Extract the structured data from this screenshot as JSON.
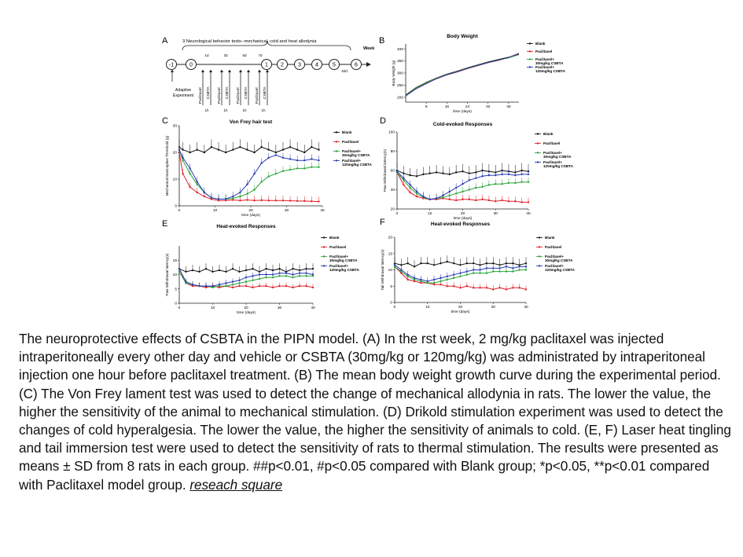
{
  "panel_a": {
    "letter": "A",
    "title": "3 Neurological behavior tests--mechanical, cold and heat allodynia",
    "week_label": "Week",
    "timeline_nodes": [
      "-1",
      "0",
      "1",
      "2",
      "3",
      "4",
      "5",
      "6"
    ],
    "day_marks": [
      "1d",
      "3d",
      "5d",
      "7d",
      "40d"
    ],
    "drug_labels": [
      "Paclitaxel",
      "CSBTA"
    ],
    "hour_label": "1h",
    "adaptive_label": "Adaptive",
    "experiment_label": "Experiment"
  },
  "legend_short": [
    "Blank",
    "Paclitaxel",
    "Paclitaxel+ 30mg/kg CSBTA",
    "Paclitaxel+ 120mg/kg CSBTA"
  ],
  "legend_lines": [
    [
      "Blank"
    ],
    [
      "Paclitaxel"
    ],
    [
      "Paclitaxel+",
      "30mg/kg CSBTA"
    ],
    [
      "Paclitaxel+",
      "120mg/kg CSBTA"
    ]
  ],
  "series_colors": [
    "#111111",
    "#e0202a",
    "#2aa33a",
    "#2b3bb5"
  ],
  "chart_data": [
    {
      "panel": "B",
      "type": "line",
      "title": "Body Weight",
      "xlabel": "time (days)",
      "ylabel": "Body Weight (g)",
      "xlim": [
        0,
        44
      ],
      "ylim": [
        180,
        420
      ],
      "xticks": [
        8,
        16,
        24,
        32,
        40
      ],
      "yticks": [
        200,
        250,
        300,
        350,
        400
      ],
      "x": [
        0,
        4,
        8,
        12,
        16,
        20,
        24,
        28,
        32,
        36,
        40,
        44
      ],
      "series": [
        {
          "name": "Blank",
          "values": [
            210,
            240,
            262,
            280,
            296,
            308,
            322,
            334,
            346,
            356,
            366,
            378
          ]
        },
        {
          "name": "Paclitaxel",
          "values": [
            208,
            236,
            258,
            276,
            292,
            304,
            318,
            330,
            342,
            352,
            364,
            380
          ]
        },
        {
          "name": "Paclitaxel+ 30mg/kg CSBTA",
          "values": [
            206,
            238,
            260,
            278,
            294,
            306,
            320,
            332,
            344,
            354,
            362,
            376
          ]
        },
        {
          "name": "Paclitaxel+ 120mg/kg CSBTA",
          "values": [
            205,
            234,
            256,
            277,
            293,
            305,
            319,
            331,
            343,
            353,
            365,
            382
          ]
        }
      ]
    },
    {
      "panel": "C",
      "type": "line",
      "title": "Von Frey hair test",
      "xlabel": "time (days)",
      "ylabel": "Mechanical Nociceptive Threshold (g)",
      "xlim": [
        0,
        40
      ],
      "ylim": [
        0,
        30
      ],
      "xticks": [
        0,
        10,
        20,
        30,
        40
      ],
      "yticks": [
        0,
        10,
        20,
        30
      ],
      "x": [
        0,
        1,
        3,
        5,
        7,
        9,
        11,
        13,
        15,
        17,
        19,
        21,
        23,
        25,
        27,
        29,
        31,
        33,
        35,
        37,
        39
      ],
      "series": [
        {
          "name": "Blank",
          "values": [
            22,
            21,
            20,
            21,
            20,
            22,
            21,
            20,
            21,
            22,
            21,
            20,
            22,
            21,
            20,
            21,
            22,
            21,
            20,
            22,
            21
          ]
        },
        {
          "name": "Paclitaxel",
          "values": [
            20,
            12,
            7,
            5,
            3.5,
            2.5,
            2,
            2,
            2.2,
            2,
            2.2,
            2,
            2.1,
            2,
            2,
            2,
            1.9,
            1.8,
            1.8,
            1.7,
            1.6
          ]
        },
        {
          "name": "Paclitaxel+ 30mg/kg CSBTA",
          "values": [
            21,
            17,
            12,
            8,
            5,
            3,
            2.5,
            2.5,
            2.8,
            3.5,
            4.5,
            6,
            9,
            11,
            12,
            13,
            13.5,
            14,
            14,
            14.5,
            14.5
          ]
        },
        {
          "name": "Paclitaxel+ 120mg/kg CSBTA",
          "values": [
            21,
            18,
            14,
            9,
            5,
            3,
            2.5,
            2.6,
            3.5,
            5,
            8,
            12,
            16,
            18,
            19,
            18,
            17.5,
            17,
            17,
            17.5,
            17
          ]
        }
      ]
    },
    {
      "panel": "D",
      "type": "line",
      "title": "Cold-evoked Responses",
      "xlabel": "time (days)",
      "ylabel": "Paw Withdrawal latency(s)",
      "xlim": [
        0,
        40
      ],
      "ylim": [
        20,
        100
      ],
      "xticks": [
        0,
        10,
        20,
        30,
        40
      ],
      "yticks": [
        20,
        40,
        60,
        80,
        100
      ],
      "x": [
        0,
        2,
        4,
        6,
        8,
        10,
        12,
        14,
        16,
        18,
        20,
        22,
        24,
        26,
        28,
        30,
        32,
        34,
        36,
        38,
        40
      ],
      "series": [
        {
          "name": "Blank",
          "values": [
            60,
            57,
            55,
            54,
            56,
            57,
            58,
            57,
            56,
            58,
            59,
            57,
            58,
            60,
            59,
            58,
            60,
            59,
            58,
            60,
            59
          ]
        },
        {
          "name": "Paclitaxel",
          "values": [
            58,
            45,
            37,
            33,
            31,
            30,
            30,
            31,
            30,
            29,
            30,
            30,
            29,
            30,
            29,
            28,
            29,
            28,
            28,
            27,
            27
          ]
        },
        {
          "name": "Paclitaxel+ 30mg/kg CSBTA",
          "values": [
            58,
            50,
            42,
            36,
            32,
            30,
            31,
            32,
            34,
            36,
            38,
            40,
            42,
            43,
            45,
            46,
            46,
            47,
            47,
            48,
            48
          ]
        },
        {
          "name": "Paclitaxel+ 120mg/kg CSBTA",
          "values": [
            59,
            52,
            45,
            38,
            33,
            30,
            31,
            34,
            38,
            42,
            46,
            50,
            52,
            54,
            55,
            55,
            56,
            56,
            55,
            56,
            56
          ]
        }
      ]
    },
    {
      "panel": "E",
      "type": "line",
      "title": "Heat-evoked Responses",
      "xlabel": "time (days)",
      "ylabel": "Paw Withdrawal latency(s)",
      "xlim": [
        0,
        40
      ],
      "ylim": [
        0,
        20
      ],
      "xticks": [
        0,
        10,
        20,
        30,
        40
      ],
      "yticks": [
        0,
        5,
        10,
        15
      ],
      "x": [
        0,
        2,
        4,
        6,
        8,
        10,
        12,
        14,
        16,
        18,
        20,
        22,
        24,
        26,
        28,
        30,
        32,
        34,
        36,
        38,
        40
      ],
      "series": [
        {
          "name": "Blank",
          "values": [
            12,
            11,
            11.5,
            11,
            12,
            11,
            11.5,
            11,
            12,
            11,
            11.5,
            12,
            11,
            12,
            11.5,
            12,
            11,
            12,
            11.5,
            12,
            12
          ]
        },
        {
          "name": "Paclitaxel",
          "values": [
            12,
            7,
            6,
            6,
            5.5,
            6,
            5.5,
            6,
            5.5,
            6,
            6,
            5.5,
            6,
            6,
            5.5,
            6,
            6,
            5.5,
            6,
            6,
            5.5
          ]
        },
        {
          "name": "Paclitaxel+ 30mg/kg CSBTA",
          "values": [
            11,
            7,
            6.5,
            6,
            6,
            5.5,
            6,
            6,
            6.5,
            7,
            7.5,
            8,
            8.5,
            9,
            9,
            9.5,
            9.5,
            9,
            9.5,
            9.5,
            9.5
          ]
        },
        {
          "name": "Paclitaxel+ 120mg/kg CSBTA",
          "values": [
            12,
            7.5,
            6.5,
            6,
            6,
            6,
            6.5,
            7,
            7.5,
            8,
            9,
            9.5,
            10,
            10,
            10,
            10.5,
            10.5,
            10,
            10.5,
            10.5,
            10
          ]
        }
      ]
    },
    {
      "panel": "F",
      "type": "line",
      "title": "Heat-evoked Responses",
      "xlabel": "time (days)",
      "ylabel": "Tail Withdrawal latency(s)",
      "xlim": [
        0,
        40
      ],
      "ylim": [
        0,
        20
      ],
      "xticks": [
        0,
        10,
        20,
        30,
        40
      ],
      "yticks": [
        0,
        5,
        10,
        15,
        20
      ],
      "x": [
        0,
        2,
        4,
        6,
        8,
        10,
        12,
        14,
        16,
        18,
        20,
        22,
        24,
        26,
        28,
        30,
        32,
        34,
        36,
        38,
        40
      ],
      "series": [
        {
          "name": "Blank",
          "values": [
            12,
            11.5,
            12,
            11,
            12,
            12,
            11.5,
            12,
            12.5,
            12,
            11.5,
            12,
            12,
            11.5,
            12,
            12,
            11.5,
            12,
            12,
            11.5,
            12
          ]
        },
        {
          "name": "Paclitaxel",
          "values": [
            11,
            9,
            7,
            6.5,
            6,
            6,
            5.5,
            5.5,
            5,
            5,
            4.5,
            5,
            4.5,
            4.5,
            4.5,
            4,
            4.5,
            4,
            4.5,
            4.5,
            4
          ]
        },
        {
          "name": "Paclitaxel+ 30mg/kg CSBTA",
          "values": [
            11,
            9.5,
            8,
            7,
            6.5,
            6,
            6,
            6.5,
            7,
            7.5,
            8,
            8.5,
            9,
            9,
            9,
            9.5,
            9.5,
            9.5,
            9.5,
            10,
            10
          ]
        },
        {
          "name": "Paclitaxel+ 120mg/kg CSBTA",
          "values": [
            11.5,
            10,
            8.5,
            7.5,
            7,
            6.5,
            7,
            7.5,
            8,
            8.5,
            9,
            9.5,
            10,
            10,
            10.5,
            10.5,
            10.5,
            11,
            10.5,
            11,
            11
          ]
        }
      ]
    }
  ],
  "caption": {
    "text": "The neuroprotective effects of CSBTA in the PIPN model. (A) In the   rst week, 2 mg/kg paclitaxel was injected intraperitoneally every other day and vehicle or CSBTA (30mg/kg or 120mg/kg) was administrated by intraperitoneal injection one hour before paclitaxel treatment. (B) The mean body weight growth curve during the experimental period. (C) The Von Frey   lament test was used to detect the change of mechanical allodynia in rats. The lower the value, the higher the sensitivity of the animal to mechanical stimulation. (D) Drikold stimulation experiment was used to detect the changes of cold hyperalgesia. The lower the value, the higher the sensitivity of animals to cold. (E, F) Laser heat tingling and tail immersion test were used to detect the sensitivity of rats to thermal stimulation. The results were presented as means ± SD from 8 rats in each group. ##p<0.01, #p<0.05 compared with Blank group; *p<0.05, **p<0.01 compared with Paclitaxel model group. ",
    "link_text": "reseach square"
  }
}
